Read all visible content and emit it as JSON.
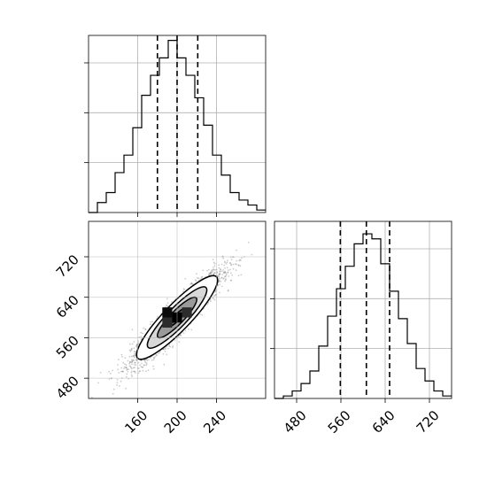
{
  "chart_data": [
    {
      "type": "histogram",
      "panel": "top-left",
      "parameter": "x",
      "xlim": [
        110,
        290
      ],
      "ylim": [
        0,
        0.071
      ],
      "grid": true,
      "bins": [
        {
          "x0": 110,
          "x1": 119,
          "value": 0.0
        },
        {
          "x0": 119,
          "x1": 128,
          "value": 0.004
        },
        {
          "x0": 128,
          "x1": 137,
          "value": 0.008
        },
        {
          "x0": 137,
          "x1": 146,
          "value": 0.016
        },
        {
          "x0": 146,
          "x1": 155,
          "value": 0.023
        },
        {
          "x0": 155,
          "x1": 164,
          "value": 0.034
        },
        {
          "x0": 164,
          "x1": 173,
          "value": 0.047
        },
        {
          "x0": 173,
          "x1": 182,
          "value": 0.055
        },
        {
          "x0": 182,
          "x1": 191,
          "value": 0.062
        },
        {
          "x0": 191,
          "x1": 200,
          "value": 0.069
        },
        {
          "x0": 200,
          "x1": 209,
          "value": 0.062
        },
        {
          "x0": 209,
          "x1": 218,
          "value": 0.055
        },
        {
          "x0": 218,
          "x1": 227,
          "value": 0.046
        },
        {
          "x0": 227,
          "x1": 236,
          "value": 0.035
        },
        {
          "x0": 236,
          "x1": 245,
          "value": 0.023
        },
        {
          "x0": 245,
          "x1": 254,
          "value": 0.015
        },
        {
          "x0": 254,
          "x1": 263,
          "value": 0.008
        },
        {
          "x0": 263,
          "x1": 272,
          "value": 0.005
        },
        {
          "x0": 272,
          "x1": 281,
          "value": 0.003
        },
        {
          "x0": 281,
          "x1": 290,
          "value": 0.001
        }
      ],
      "quantiles": [
        180,
        200,
        221
      ],
      "xticks": [
        160,
        200,
        240
      ],
      "yticks": [
        0.02,
        0.04,
        0.06
      ]
    },
    {
      "type": "heatmap",
      "panel": "bottom-left",
      "parameters": [
        "x",
        "y"
      ],
      "xlim": [
        110,
        290
      ],
      "ylim": [
        440,
        790
      ],
      "grid": true,
      "xticks": [
        160,
        200,
        240
      ],
      "yticks": [
        480,
        560,
        640,
        720
      ],
      "contour_levels": [
        {
          "center": [
            200,
            600
          ],
          "semi_axes": [
            62,
            14
          ],
          "angle_deg": 46,
          "fill": "#ffffff"
        },
        {
          "center": [
            200,
            600
          ],
          "semi_axes": [
            46,
            10
          ],
          "angle_deg": 46,
          "fill": "#d8d8d8"
        },
        {
          "center": [
            200,
            600
          ],
          "semi_axes": [
            30,
            7
          ],
          "angle_deg": 46,
          "fill": "#9a9a9a"
        },
        {
          "center": [
            200,
            600
          ],
          "semi_axes": [
            14,
            3
          ],
          "angle_deg": 46,
          "fill": "#555555"
        }
      ],
      "density_cells": [
        {
          "x": 190,
          "y": 590,
          "value": 0.6
        },
        {
          "x": 210,
          "y": 610,
          "value": 0.6
        },
        {
          "x": 190,
          "y": 610,
          "value": 0.9
        },
        {
          "x": 200,
          "y": 600,
          "value": 1.0
        }
      ]
    },
    {
      "type": "histogram",
      "panel": "bottom-right",
      "parameter": "y",
      "xlim": [
        440,
        760
      ],
      "ylim": [
        0,
        0.071
      ],
      "grid": true,
      "bins": [
        {
          "x0": 440,
          "x1": 456,
          "value": 0.0
        },
        {
          "x0": 456,
          "x1": 472,
          "value": 0.001
        },
        {
          "x0": 472,
          "x1": 488,
          "value": 0.003
        },
        {
          "x0": 488,
          "x1": 504,
          "value": 0.006
        },
        {
          "x0": 504,
          "x1": 520,
          "value": 0.011
        },
        {
          "x0": 520,
          "x1": 536,
          "value": 0.021
        },
        {
          "x0": 536,
          "x1": 552,
          "value": 0.033
        },
        {
          "x0": 552,
          "x1": 568,
          "value": 0.044
        },
        {
          "x0": 568,
          "x1": 584,
          "value": 0.053
        },
        {
          "x0": 584,
          "x1": 600,
          "value": 0.062
        },
        {
          "x0": 600,
          "x1": 616,
          "value": 0.066
        },
        {
          "x0": 616,
          "x1": 632,
          "value": 0.064
        },
        {
          "x0": 632,
          "x1": 648,
          "value": 0.054
        },
        {
          "x0": 648,
          "x1": 664,
          "value": 0.043
        },
        {
          "x0": 664,
          "x1": 680,
          "value": 0.032
        },
        {
          "x0": 680,
          "x1": 696,
          "value": 0.022
        },
        {
          "x0": 696,
          "x1": 712,
          "value": 0.012
        },
        {
          "x0": 712,
          "x1": 728,
          "value": 0.007
        },
        {
          "x0": 728,
          "x1": 744,
          "value": 0.003
        },
        {
          "x0": 744,
          "x1": 760,
          "value": 0.001
        }
      ],
      "quantiles": [
        559,
        606,
        648
      ],
      "xticks": [
        480,
        560,
        640,
        720
      ],
      "yticks": [
        0.02,
        0.04,
        0.06
      ]
    }
  ]
}
